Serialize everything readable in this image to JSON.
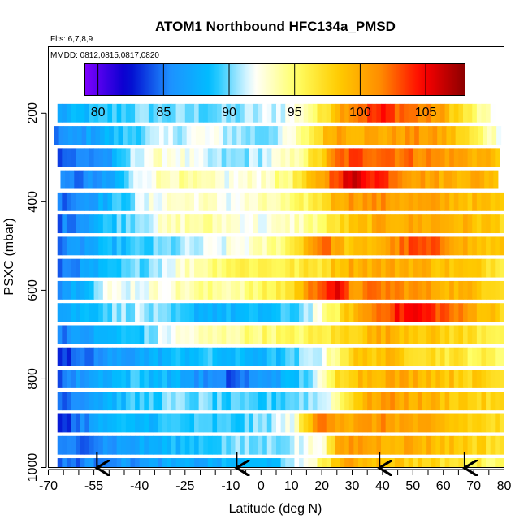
{
  "chart_data": {
    "type": "heatmap",
    "title": "ATOM1 Northbound HFC134a_PMSD",
    "flights_note": "Flts: 6,7,8,9",
    "dates_note": "MMDD: 0812,0815,0817,0820",
    "xlabel": "Latitude (deg N)",
    "ylabel": "PSXC (mbar)",
    "xlim": [
      -70,
      80
    ],
    "ylim": [
      1000,
      50
    ],
    "x_ticks": [
      -70,
      -55,
      -40,
      -25,
      -10,
      0,
      10,
      20,
      30,
      40,
      50,
      60,
      70,
      80
    ],
    "x_tick_labels": [
      "-70",
      "-55",
      "-40",
      "-25",
      "-10",
      "0",
      "10",
      "20",
      "30",
      "40",
      "50",
      "60",
      "70",
      "80"
    ],
    "y_ticks": [
      200,
      400,
      600,
      800,
      1000
    ],
    "y_tick_labels": [
      "200",
      "400",
      "600",
      "800",
      "1000"
    ],
    "colorbar": {
      "min": 79,
      "max": 108,
      "ticks": [
        80,
        85,
        90,
        95,
        100,
        105
      ],
      "tick_labels": [
        "80",
        "85",
        "90",
        "95",
        "100",
        "105"
      ],
      "colors": [
        "#7f00ff",
        "#0000cc",
        "#1e90ff",
        "#00bfff",
        "#ffffff",
        "#ffff66",
        "#ffcc00",
        "#ff8c00",
        "#ff0000",
        "#8b0000"
      ]
    },
    "pressure_levels": [
      200,
      250,
      300,
      350,
      400,
      450,
      500,
      550,
      600,
      650,
      700,
      750,
      800,
      850,
      900,
      950,
      1000
    ],
    "level_lat_ranges": [
      [
        -67,
        76
      ],
      [
        -68,
        78
      ],
      [
        -67,
        78
      ],
      [
        -66,
        78
      ],
      [
        -67,
        79
      ],
      [
        -67,
        79
      ],
      [
        -67,
        80
      ],
      [
        -67,
        80
      ],
      [
        -67,
        80
      ],
      [
        -67,
        80
      ],
      [
        -67,
        80
      ],
      [
        -67,
        80
      ],
      [
        -67,
        80
      ],
      [
        -67,
        80
      ],
      [
        -67,
        80
      ],
      [
        -67,
        80
      ],
      [
        -67,
        80
      ]
    ],
    "profile_lat": [
      -70,
      -60,
      -50,
      -40,
      -30,
      -20,
      -10,
      0,
      10,
      20,
      25,
      30,
      40,
      50,
      60,
      70,
      80
    ],
    "level_profiles": [
      [
        86,
        88,
        89,
        90,
        90,
        90,
        90,
        91,
        92,
        96,
        100,
        102,
        104,
        102,
        100,
        95,
        90
      ],
      [
        85,
        86,
        88,
        90,
        91,
        92,
        91,
        90,
        92,
        98,
        101,
        100,
        100,
        101,
        100,
        96,
        92
      ],
      [
        84,
        85,
        86,
        92,
        93,
        91,
        90,
        91,
        93,
        98,
        102,
        103,
        103,
        102,
        101,
        100,
        99
      ],
      [
        84,
        85,
        86,
        92,
        94,
        93,
        92,
        93,
        95,
        100,
        104,
        106,
        104,
        101,
        100,
        100,
        99
      ],
      [
        84,
        86,
        88,
        91,
        93,
        93,
        92,
        93,
        94,
        97,
        100,
        101,
        101,
        100,
        100,
        99,
        98
      ],
      [
        84,
        86,
        89,
        91,
        93,
        94,
        93,
        92,
        93,
        95,
        97,
        98,
        100,
        100,
        100,
        99,
        98
      ],
      [
        84,
        86,
        88,
        89,
        90,
        91,
        92,
        93,
        96,
        103,
        100,
        98,
        100,
        103,
        102,
        99,
        98
      ],
      [
        84,
        86,
        88,
        90,
        92,
        94,
        96,
        96,
        96,
        97,
        99,
        100,
        100,
        100,
        99,
        98,
        97
      ],
      [
        85,
        88,
        92,
        92,
        93,
        94,
        94,
        95,
        97,
        104,
        105,
        101,
        102,
        101,
        100,
        99,
        98
      ],
      [
        86,
        88,
        90,
        91,
        89,
        88,
        88,
        88,
        89,
        93,
        96,
        99,
        103,
        105,
        103,
        100,
        98
      ],
      [
        85,
        86,
        88,
        89,
        92,
        93,
        94,
        95,
        95,
        96,
        97,
        98,
        100,
        99,
        98,
        97,
        96
      ],
      [
        82,
        84,
        86,
        87,
        88,
        89,
        88,
        88,
        89,
        92,
        95,
        98,
        99,
        98,
        97,
        96,
        95
      ],
      [
        84,
        86,
        88,
        89,
        88,
        86,
        84,
        86,
        88,
        92,
        97,
        99,
        100,
        100,
        99,
        98,
        97
      ],
      [
        84,
        86,
        88,
        89,
        90,
        90,
        89,
        89,
        90,
        91,
        94,
        98,
        101,
        100,
        99,
        98,
        97
      ],
      [
        82,
        85,
        88,
        88,
        89,
        89,
        89,
        90,
        92,
        103,
        101,
        100,
        101,
        100,
        99,
        98,
        97
      ],
      [
        84,
        85,
        86,
        87,
        88,
        89,
        90,
        90,
        91,
        93,
        99,
        101,
        100,
        100,
        99,
        98,
        97
      ],
      [
        84,
        85,
        86,
        86,
        87,
        87,
        88,
        88,
        90,
        95,
        99,
        100,
        99,
        98,
        97,
        96,
        95
      ]
    ],
    "arrow_lats": [
      -54,
      -8,
      39,
      67
    ],
    "grid": false,
    "colorbar_position": "top"
  }
}
